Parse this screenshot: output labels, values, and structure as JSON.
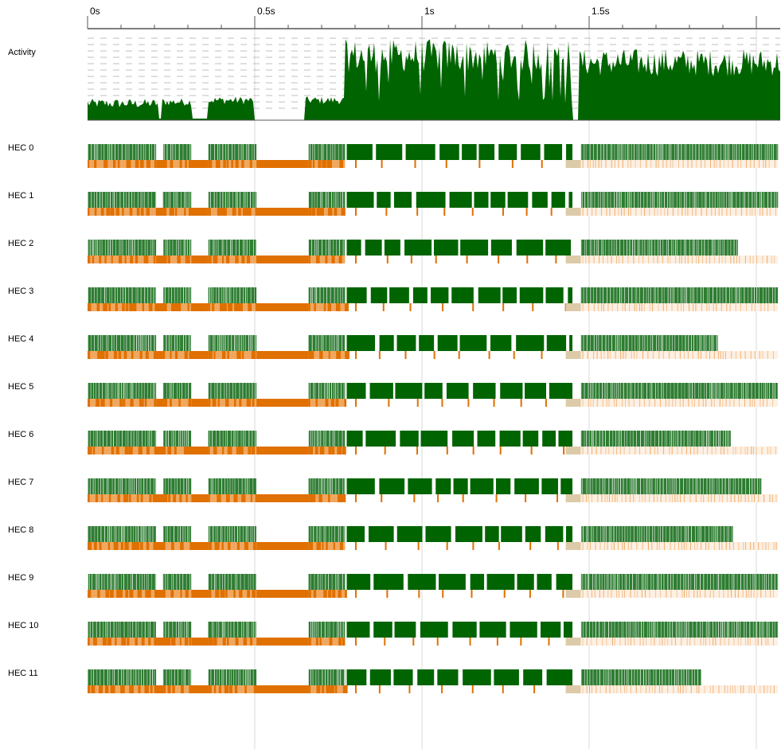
{
  "axis": {
    "ticks": [
      {
        "label": "0s",
        "t": 0
      },
      {
        "label": "0.5s",
        "t": 0.5
      },
      {
        "label": "1s",
        "t": 1.0
      },
      {
        "label": "1.5s",
        "t": 1.5
      }
    ],
    "visible_range_s": [
      0,
      2.07
    ],
    "grid_lines_s": [
      0.5,
      1.0,
      1.5,
      2.0
    ]
  },
  "activity": {
    "label": "Activity",
    "color": "#006400"
  },
  "colors": {
    "running": "#006400",
    "running_light": "#2e7d32",
    "gc": "#e07000",
    "gc_light": "#f0a860",
    "idle_gc": "#dccaa8",
    "grid": "#d8d8d8",
    "axis": "#000000"
  },
  "hecs": [
    {
      "label": "HEC 0",
      "busy_end_s": 2.065
    },
    {
      "label": "HEC 1",
      "busy_end_s": 2.065
    },
    {
      "label": "HEC 2",
      "busy_end_s": 1.945
    },
    {
      "label": "HEC 3",
      "busy_end_s": 2.065
    },
    {
      "label": "HEC 4",
      "busy_end_s": 1.885
    },
    {
      "label": "HEC 5",
      "busy_end_s": 2.065
    },
    {
      "label": "HEC 6",
      "busy_end_s": 1.925
    },
    {
      "label": "HEC 7",
      "busy_end_s": 2.015
    },
    {
      "label": "HEC 8",
      "busy_end_s": 1.93
    },
    {
      "label": "HEC 9",
      "busy_end_s": 2.065
    },
    {
      "label": "HEC 10",
      "busy_end_s": 2.065
    },
    {
      "label": "HEC 11",
      "busy_end_s": 1.835
    }
  ]
}
